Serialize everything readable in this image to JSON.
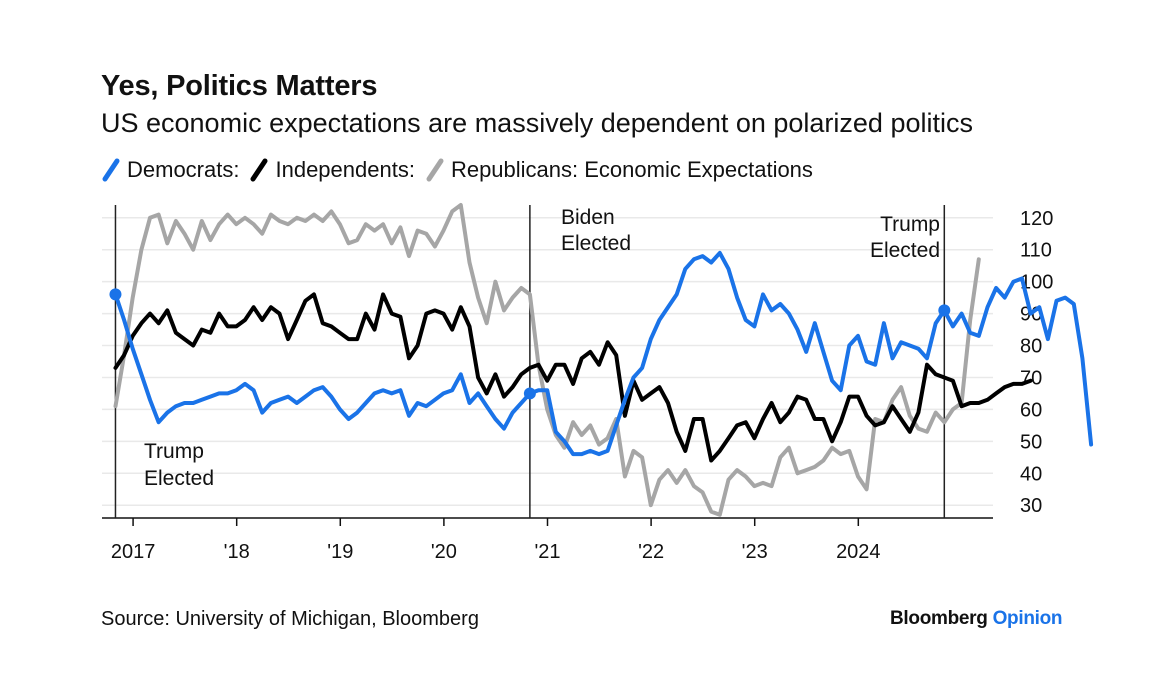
{
  "header": {
    "title": "Yes, Politics Matters",
    "subtitle": "US economic expectations are massively dependent on polarized politics"
  },
  "legend": {
    "items": [
      {
        "label": "Democrats:",
        "color": "#1a73e8"
      },
      {
        "label": "Independents:",
        "color": "#000000"
      },
      {
        "label": "Republicans: Economic Expectations",
        "color": "#a6a6a6"
      }
    ]
  },
  "footer": {
    "source": "Source: University of Michigan, Bloomberg",
    "brand_primary": "Bloomberg",
    "brand_secondary": "Opinion"
  },
  "chart_data": {
    "type": "line",
    "x_start": 2016.83,
    "x_step_months": 1,
    "xlim": [
      2016.7,
      2025.3
    ],
    "ylim": [
      26,
      124
    ],
    "y_ticks": [
      30,
      40,
      50,
      60,
      70,
      80,
      90,
      100,
      110,
      120
    ],
    "x_ticks": [
      {
        "label": "2017",
        "value": 2017
      },
      {
        "label": "'18",
        "value": 2018
      },
      {
        "label": "'19",
        "value": 2019
      },
      {
        "label": "'20",
        "value": 2020
      },
      {
        "label": "'21",
        "value": 2021
      },
      {
        "label": "'22",
        "value": 2022
      },
      {
        "label": "'23",
        "value": 2023
      },
      {
        "label": "2024",
        "value": 2024
      }
    ],
    "events": [
      {
        "label_line1": "Trump",
        "label_line2": "Elected",
        "x": 2016.83
      },
      {
        "label_line1": "Biden",
        "label_line2": "Elected",
        "x": 2020.83
      },
      {
        "label_line1": "Trump",
        "label_line2": "Elected",
        "x": 2024.83
      }
    ],
    "series": [
      {
        "name": "Democrats",
        "color": "#1a73e8",
        "values": [
          96,
          88,
          79,
          71,
          63,
          56,
          59,
          61,
          62,
          62,
          63,
          64,
          65,
          65,
          66,
          68,
          66,
          59,
          62,
          63,
          64,
          62,
          64,
          66,
          67,
          64,
          60,
          57,
          59,
          62,
          65,
          66,
          65,
          66,
          58,
          62,
          61,
          63,
          65,
          66,
          71,
          62,
          65,
          61,
          57,
          54,
          59,
          62,
          65,
          66,
          66,
          53,
          50,
          46,
          46,
          47,
          46,
          47,
          55,
          63,
          70,
          73,
          82,
          88,
          92,
          96,
          104,
          107,
          108,
          106,
          109,
          104,
          95,
          88,
          86,
          96,
          91,
          93,
          90,
          85,
          78,
          87,
          78,
          69,
          66,
          80,
          83,
          75,
          74,
          87,
          76,
          81,
          80,
          79,
          76,
          87,
          91,
          86,
          90,
          84,
          83,
          92,
          98,
          95,
          100,
          101,
          90,
          92,
          82,
          94,
          95,
          93,
          76,
          49
        ],
        "endpoint_marker": true,
        "start_marker": true
      },
      {
        "name": "Independents",
        "color": "#000000",
        "values": [
          73,
          77,
          83,
          87,
          90,
          87,
          91,
          84,
          82,
          80,
          85,
          84,
          90,
          86,
          86,
          88,
          92,
          88,
          92,
          90,
          82,
          88,
          94,
          96,
          87,
          86,
          84,
          82,
          82,
          90,
          85,
          96,
          90,
          89,
          76,
          80,
          90,
          91,
          90,
          85,
          92,
          86,
          70,
          65,
          71,
          64,
          67,
          71,
          73,
          74,
          69,
          74,
          74,
          68,
          76,
          78,
          74,
          81,
          77,
          58,
          69,
          63,
          65,
          67,
          62,
          53,
          47,
          57,
          57,
          44,
          47,
          51,
          55,
          56,
          51,
          57,
          62,
          56,
          59,
          64,
          63,
          57,
          57,
          50,
          56,
          64,
          64,
          58,
          55,
          56,
          61,
          57,
          53,
          59,
          74,
          71,
          70,
          69,
          61,
          62,
          62,
          63,
          65,
          67,
          68,
          68,
          69
        ]
      },
      {
        "name": "Republicans",
        "color": "#a6a6a6",
        "values": [
          61,
          77,
          95,
          110,
          120,
          121,
          112,
          119,
          115,
          110,
          119,
          113,
          118,
          121,
          118,
          120,
          118,
          115,
          121,
          119,
          118,
          120,
          119,
          121,
          119,
          122,
          118,
          112,
          113,
          118,
          116,
          118,
          112,
          117,
          108,
          116,
          115,
          111,
          116,
          122,
          124,
          106,
          95,
          87,
          100,
          91,
          95,
          98,
          96,
          74,
          60,
          52,
          48,
          56,
          52,
          55,
          49,
          51,
          57,
          39,
          47,
          45,
          30,
          38,
          41,
          37,
          41,
          36,
          34,
          28,
          27,
          38,
          41,
          39,
          36,
          37,
          36,
          45,
          48,
          40,
          41,
          42,
          44,
          48,
          46,
          47,
          39,
          35,
          57,
          56,
          63,
          67,
          58,
          54,
          53,
          59,
          56,
          60,
          62,
          88,
          107
        ]
      }
    ]
  }
}
